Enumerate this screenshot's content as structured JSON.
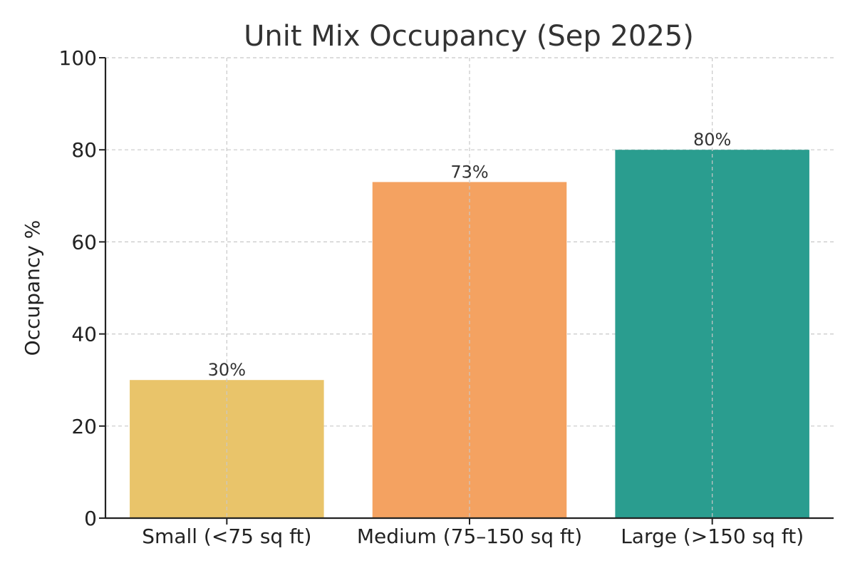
{
  "chart_data": {
    "type": "bar",
    "title": "Unit Mix Occupancy (Sep 2025)",
    "xlabel": "",
    "ylabel": "Occupancy %",
    "categories": [
      "Small (<75 sq ft)",
      "Medium (75–150 sq ft)",
      "Large (>150 sq ft)"
    ],
    "values": [
      30,
      73,
      80
    ],
    "data_labels": [
      "30%",
      "73%",
      "80%"
    ],
    "colors": [
      "#e9c46a",
      "#f4a261",
      "#2a9d8f"
    ],
    "ylim": [
      0,
      100
    ],
    "yticks": [
      0,
      20,
      40,
      60,
      80,
      100
    ],
    "grid": true,
    "legend": "none"
  }
}
